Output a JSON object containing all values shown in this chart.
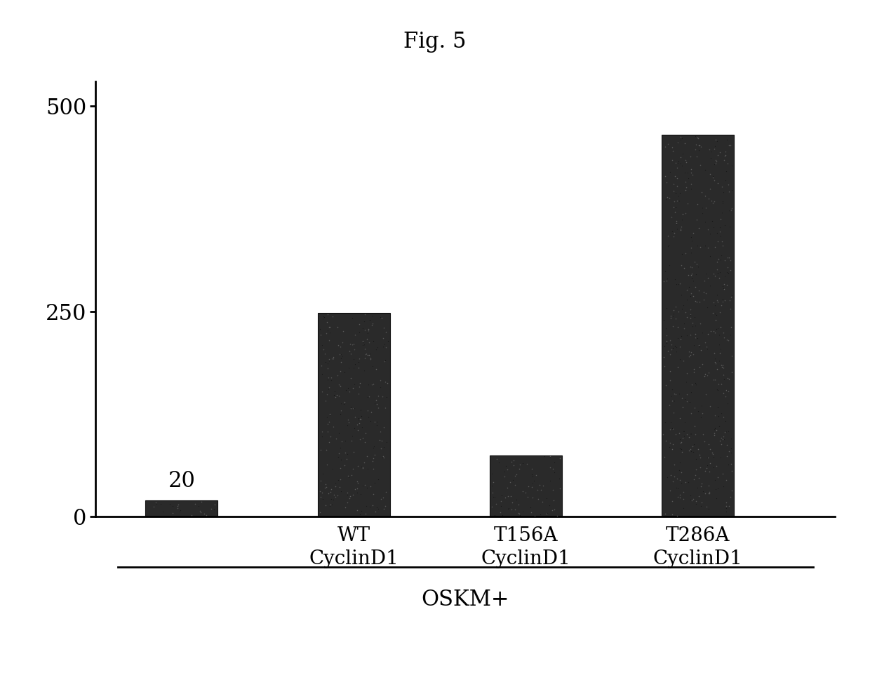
{
  "title": "Fig. 5",
  "categories": [
    "",
    "WT\nCyclinD1",
    "T156A\nCyclinD1",
    "T286A\nCyclinD1"
  ],
  "values": [
    20,
    248,
    75,
    465
  ],
  "bar_annotation": "20",
  "group_label": "OSKM+",
  "yticks": [
    0,
    250,
    500
  ],
  "ylim": [
    0,
    530
  ],
  "xlim": [
    -0.5,
    3.8
  ],
  "bar_color": "#2a2a2a",
  "background_color": "#ffffff",
  "bar_width": 0.42,
  "title_fontsize": 22,
  "tick_fontsize": 22,
  "label_fontsize": 20,
  "group_label_fontsize": 22,
  "annotation_fontsize": 22,
  "noise_seed": 42,
  "noise_density": 0.18
}
